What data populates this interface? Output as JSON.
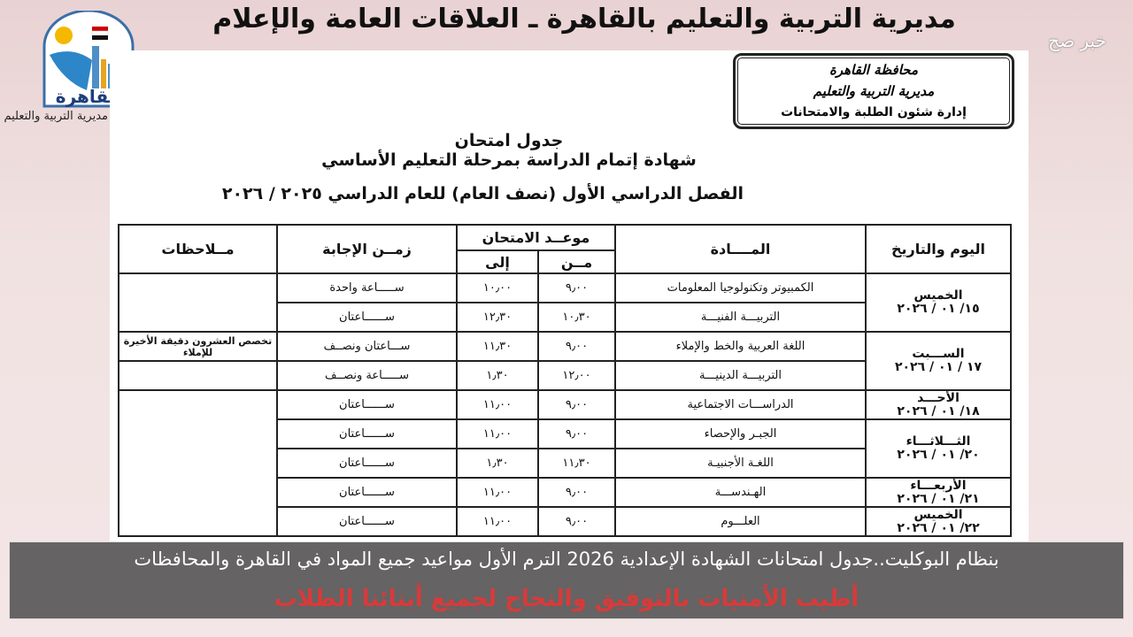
{
  "header": {
    "title": "مديرية التربية والتعليم بالقاهرة ـ العلاقات العامة والإعلام",
    "watermark": "خبر صح"
  },
  "logo": {
    "text": "القاهرة",
    "caption": "مديرية التربية والتعليم"
  },
  "stamp": {
    "line1": "محافظة القاهرة",
    "line2": "مديرية التربية والتعليم",
    "line3": "إدارة شئون الطلبة والامتحانات"
  },
  "document": {
    "title": "جدول امتحان",
    "subtitle": "شهادة إتمام الدراسة بمرحلة التعليم الأساسي",
    "term": "الفصل الدراسي الأول (نصف العام) للعام الدراسي ٢٠٢٥ / ٢٠٢٦"
  },
  "table": {
    "headers": {
      "day_date": "اليوم والتاريخ",
      "subject": "المــــادة",
      "schedule": "موعــد الامتحان",
      "from": "مــن",
      "to": "إلى",
      "duration": "زمــن الإجابة",
      "notes": "مــلاحظات"
    },
    "days": [
      {
        "day": "الخميس",
        "date": "١٥/ ٠١ / ٢٠٢٦",
        "subjects": [
          {
            "subject": "الكمبيوتر وتكنولوجيا المعلومات",
            "from": "٩٫٠٠",
            "to": "١٠٫٠٠",
            "duration": "ســـــاعة واحدة",
            "note": ""
          },
          {
            "subject": "التربيـــة الفنيـــة",
            "from": "١٠٫٣٠",
            "to": "١٢٫٣٠",
            "duration": "ســــــاعتان",
            "note": ""
          }
        ]
      },
      {
        "day": "الســـبت",
        "date": "١٧ / ٠١ / ٢٠٢٦",
        "subjects": [
          {
            "subject": "اللغة العربية والخط والإملاء",
            "from": "٩٫٠٠",
            "to": "١١٫٣٠",
            "duration": "ســـاعتان ونصــف",
            "note": "تخصص العشرون دقيقة الأخيرة للإملاء"
          },
          {
            "subject": "التربيـــة الدينيـــة",
            "from": "١٢٫٠٠",
            "to": "١٫٣٠",
            "duration": "ســـــاعة ونصــف",
            "note": ""
          }
        ]
      },
      {
        "day": "الأحـــد",
        "date": "١٨/ ٠١ / ٢٠٢٦",
        "subjects": [
          {
            "subject": "الدراســـات الاجتماعية",
            "from": "٩٫٠٠",
            "to": "١١٫٠٠",
            "duration": "ســــــاعتان",
            "note": ""
          }
        ]
      },
      {
        "day": "الثـــلاثـــاء",
        "date": "٢٠/ ٠١ / ٢٠٢٦",
        "subjects": [
          {
            "subject": "الجبـر والإحصاء",
            "from": "٩٫٠٠",
            "to": "١١٫٠٠",
            "duration": "ســــــاعتان",
            "note": ""
          },
          {
            "subject": "اللغـة الأجنبيـة",
            "from": "١١٫٣٠",
            "to": "١٫٣٠",
            "duration": "ســــــاعتان",
            "note": ""
          }
        ]
      },
      {
        "day": "الأربعـــاء",
        "date": "٢١/ ٠١ / ٢٠٢٦",
        "subjects": [
          {
            "subject": "الهـندســـة",
            "from": "٩٫٠٠",
            "to": "١١٫٠٠",
            "duration": "ســــــاعتان",
            "note": ""
          }
        ]
      },
      {
        "day": "الخميس",
        "date": "٢٢/ ٠١ / ٢٠٢٦",
        "subjects": [
          {
            "subject": "العلـــوم",
            "from": "٩٫٠٠",
            "to": "١١٫٠٠",
            "duration": "ســــــاعتان",
            "note": ""
          }
        ]
      }
    ]
  },
  "caption": "بنظام البوكليت..جدول امتحانات الشهادة الإعدادية 2026 الترم الأول مواعيد جميع المواد في القاهرة والمحافظات",
  "footer": "أطيب الأمنيات بالتوفيق والنجاح لجميع أبنائنا الطلاب"
}
